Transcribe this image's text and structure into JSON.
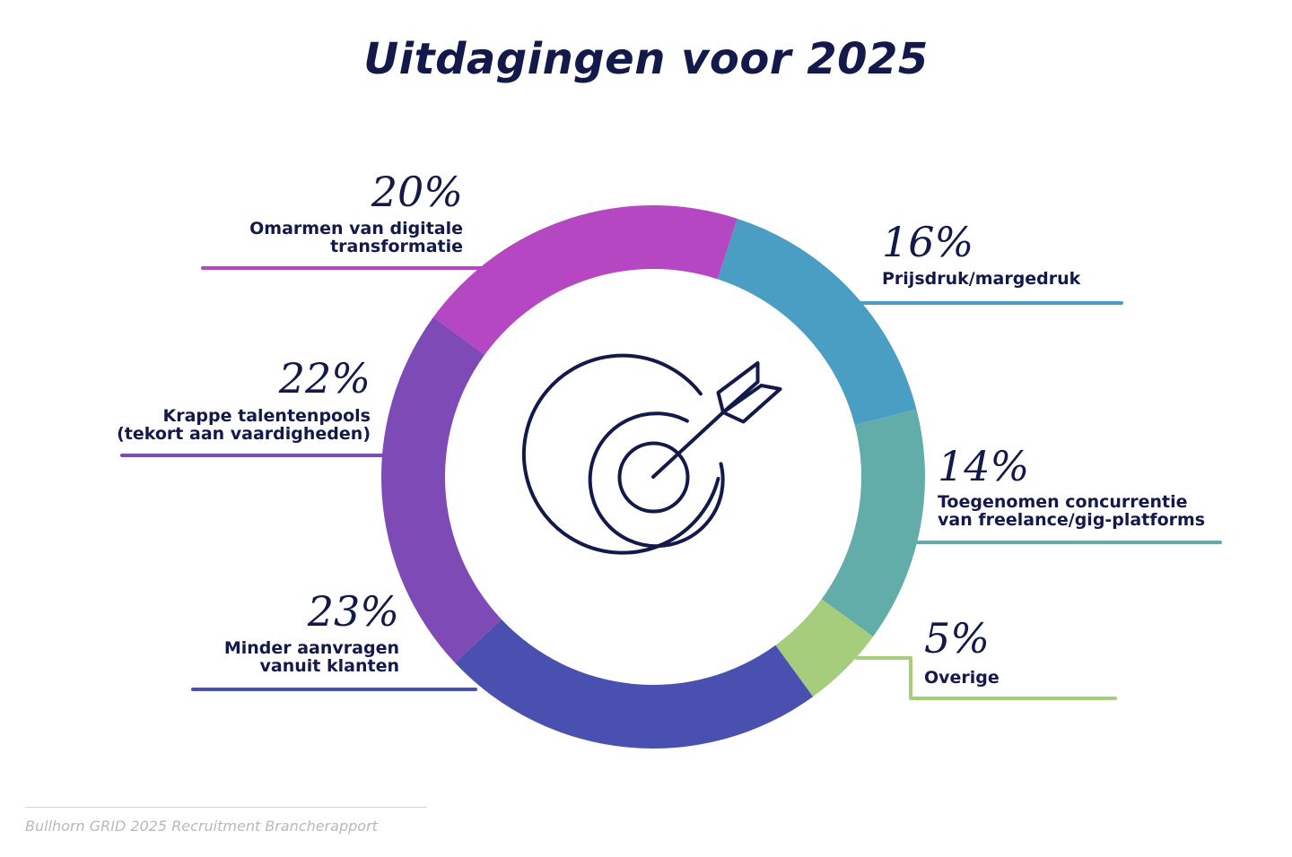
{
  "title": "Uitdagingen voor 2025",
  "source": "Bullhorn GRID 2025 Recruitment Brancherapport",
  "chart_data": {
    "type": "pie",
    "title": "Uitdagingen voor 2025",
    "legend": "none",
    "slices": [
      {
        "value": 16,
        "pct_label": "16%",
        "label_lines": [
          "Prijsdruk/margedruk"
        ],
        "color": "#4a9ec4"
      },
      {
        "value": 14,
        "pct_label": "14%",
        "label_lines": [
          "Toegenomen concurrentie",
          "van freelance/gig-platforms"
        ],
        "color": "#62ada9"
      },
      {
        "value": 5,
        "pct_label": "5%",
        "label_lines": [
          "Overige"
        ],
        "color": "#a6cd7b"
      },
      {
        "value": 23,
        "pct_label": "23%",
        "label_lines": [
          "Minder aanvragen",
          "vanuit klanten"
        ],
        "color": "#4a50b0"
      },
      {
        "value": 22,
        "pct_label": "22%",
        "label_lines": [
          "Krappe talentenpools",
          "(tekort aan vaardigheden)"
        ],
        "color": "#7e4bb6"
      },
      {
        "value": 20,
        "pct_label": "20%",
        "label_lines": [
          "Omarmen van digitale",
          "transformatie"
        ],
        "color": "#b547c2"
      }
    ]
  },
  "icons": {
    "center": "target-arrow-icon"
  },
  "colors": {
    "text": "#13194a",
    "source": "#b9b9b9"
  }
}
